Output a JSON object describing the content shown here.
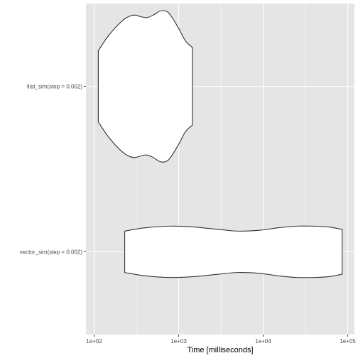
{
  "chart_data": {
    "type": "violin",
    "orientation": "horizontal",
    "title": "",
    "xlabel": "Time [milliseconds]",
    "ylabel": "",
    "x_scale": "log10",
    "xlim": [
      80,
      120000
    ],
    "x_ticks": [
      100,
      1000,
      10000,
      100000
    ],
    "x_tick_labels": [
      "1e+02",
      "1e+03",
      "1e+04",
      "1e+05"
    ],
    "categories": [
      "llist_sim(step = 0.002)",
      "vector_sim(step = 0.002)"
    ],
    "grid": true,
    "panel_background": "#e5e5e5",
    "grid_color": "#ffffff",
    "violin_fill": "#ffffff",
    "violin_outline": "#333333",
    "series": [
      {
        "category": "llist_sim(step = 0.002)",
        "min": 112,
        "max": 1450,
        "profile": [
          [
            112,
            0.43
          ],
          [
            150,
            0.62
          ],
          [
            220,
            0.8
          ],
          [
            290,
            0.86
          ],
          [
            360,
            0.84
          ],
          [
            420,
            0.83
          ],
          [
            500,
            0.86
          ],
          [
            600,
            0.91
          ],
          [
            700,
            0.91
          ],
          [
            800,
            0.86
          ],
          [
            1000,
            0.7
          ],
          [
            1200,
            0.55
          ],
          [
            1450,
            0.47
          ]
        ]
      },
      {
        "category": "vector_sim(step = 0.002)",
        "min": 230,
        "max": 86000,
        "profile": [
          [
            230,
            0.25
          ],
          [
            400,
            0.29
          ],
          [
            800,
            0.31
          ],
          [
            1500,
            0.3
          ],
          [
            3000,
            0.27
          ],
          [
            5000,
            0.25
          ],
          [
            9000,
            0.26
          ],
          [
            15000,
            0.29
          ],
          [
            25000,
            0.31
          ],
          [
            40000,
            0.31
          ],
          [
            60000,
            0.3
          ],
          [
            86000,
            0.27
          ]
        ]
      }
    ]
  }
}
